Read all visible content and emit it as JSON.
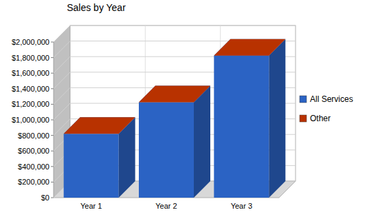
{
  "chart_data": {
    "type": "bar",
    "title": "Sales by Year",
    "categories": [
      "Year 1",
      "Year 2",
      "Year 3"
    ],
    "series": [
      {
        "name": "All Services",
        "color": "#2b63c4",
        "values": [
          820000,
          1225000,
          1825000
        ]
      },
      {
        "name": "Other",
        "color": "#b83200",
        "values": [
          0,
          0,
          0
        ]
      }
    ],
    "stacked": true,
    "ylim": [
      0,
      2000000
    ],
    "yticks": [
      {
        "value": 0,
        "label": "$0"
      },
      {
        "value": 200000,
        "label": "$200,000"
      },
      {
        "value": 400000,
        "label": "$400,000"
      },
      {
        "value": 600000,
        "label": "$600,000"
      },
      {
        "value": 800000,
        "label": "$800,000"
      },
      {
        "value": 1000000,
        "label": "$1,000,000"
      },
      {
        "value": 1200000,
        "label": "$1,200,000"
      },
      {
        "value": 1400000,
        "label": "$1,400,000"
      },
      {
        "value": 1600000,
        "label": "$1,600,000"
      },
      {
        "value": 1800000,
        "label": "$1,800,000"
      },
      {
        "value": 2000000,
        "label": "$2,000,000"
      }
    ],
    "grid": true,
    "legend": "right"
  }
}
